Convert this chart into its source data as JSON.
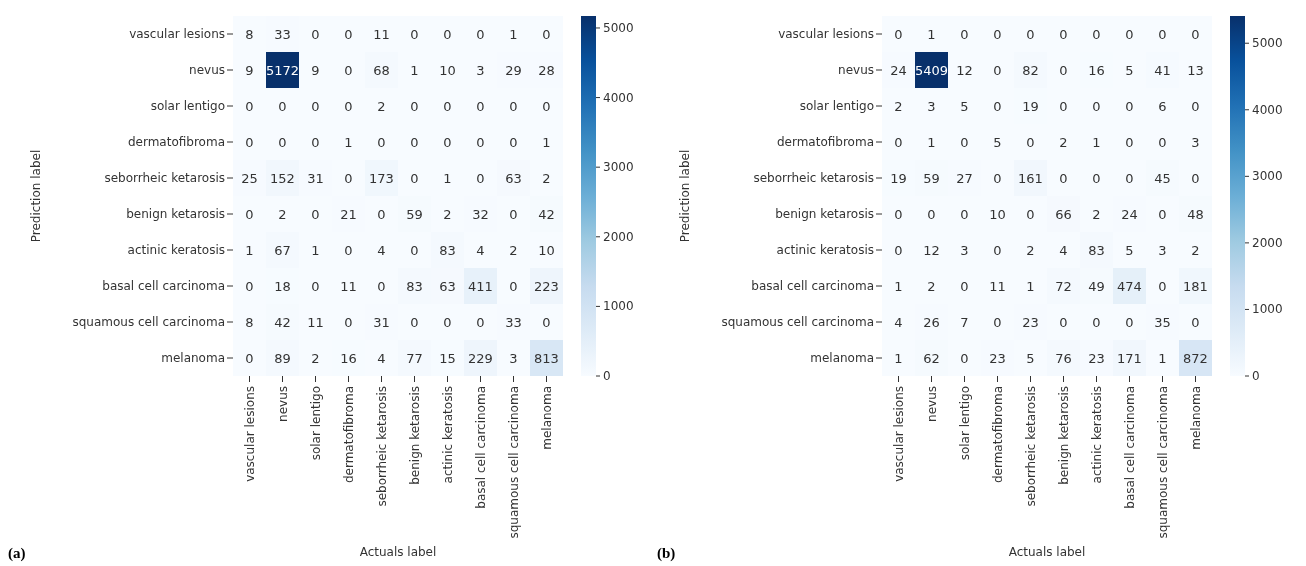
{
  "chart_data": [
    {
      "type": "heatmap",
      "xlabel": "Actuals label",
      "ylabel": "Prediction label",
      "annotations": [
        "(a)"
      ],
      "data_labels": true,
      "categories": [
        "vascular lesions",
        "nevus",
        "solar lentigo",
        "dermatofibroma",
        "seborrheic ketarosis",
        "benign ketarosis",
        "actinic keratosis",
        "basal cell carcinoma",
        "squamous cell carcinoma",
        "melanoma"
      ],
      "y_categories": [
        "vascular lesions",
        "nevus",
        "solar lentigo",
        "dermatofibroma",
        "seborrheic ketarosis",
        "benign ketarosis",
        "actinic keratosis",
        "basal cell carcinoma",
        "squamous cell carcinoma",
        "melanoma"
      ],
      "cells": [
        [
          8,
          33,
          0,
          0,
          11,
          0,
          0,
          0,
          1,
          0
        ],
        [
          9,
          5172,
          9,
          0,
          68,
          1,
          10,
          3,
          29,
          28
        ],
        [
          0,
          0,
          0,
          0,
          2,
          0,
          0,
          0,
          0,
          0
        ],
        [
          0,
          0,
          0,
          1,
          0,
          0,
          0,
          0,
          0,
          1
        ],
        [
          25,
          152,
          31,
          0,
          173,
          0,
          1,
          0,
          63,
          2
        ],
        [
          0,
          2,
          0,
          21,
          0,
          59,
          2,
          32,
          0,
          42
        ],
        [
          1,
          67,
          1,
          0,
          4,
          0,
          83,
          4,
          2,
          10
        ],
        [
          0,
          18,
          0,
          11,
          0,
          83,
          63,
          411,
          0,
          223
        ],
        [
          8,
          42,
          11,
          0,
          31,
          0,
          0,
          0,
          33,
          0
        ],
        [
          0,
          89,
          2,
          16,
          4,
          77,
          15,
          229,
          3,
          813
        ]
      ],
      "clim": [
        0,
        5172
      ],
      "cticks": [
        0,
        1000,
        2000,
        3000,
        4000,
        5000
      ]
    },
    {
      "type": "heatmap",
      "xlabel": "Actuals label",
      "ylabel": "Prediction label",
      "annotations": [
        "(b)"
      ],
      "data_labels": true,
      "categories": [
        "vascular lesions",
        "nevus",
        "solar lentigo",
        "dermatofibroma",
        "seborrheic ketarosis",
        "benign ketarosis",
        "actinic keratosis",
        "basal cell carcinoma",
        "squamous cell carcinoma",
        "melanoma"
      ],
      "y_categories": [
        "vascular lesions",
        "nevus",
        "solar lentigo",
        "dermatofibroma",
        "seborrheic ketarosis",
        "benign ketarosis",
        "actinic keratosis",
        "basal cell carcinoma",
        "squamous cell carcinoma",
        "melanoma"
      ],
      "cells": [
        [
          0,
          1,
          0,
          0,
          0,
          0,
          0,
          0,
          0,
          0
        ],
        [
          24,
          5409,
          12,
          0,
          82,
          0,
          16,
          5,
          41,
          13
        ],
        [
          2,
          3,
          5,
          0,
          19,
          0,
          0,
          0,
          6,
          0
        ],
        [
          0,
          1,
          0,
          5,
          0,
          2,
          1,
          0,
          0,
          3
        ],
        [
          19,
          59,
          27,
          0,
          161,
          0,
          0,
          0,
          45,
          0
        ],
        [
          0,
          0,
          0,
          10,
          0,
          66,
          2,
          24,
          0,
          48
        ],
        [
          0,
          12,
          3,
          0,
          2,
          4,
          83,
          5,
          3,
          2
        ],
        [
          1,
          2,
          0,
          11,
          1,
          72,
          49,
          474,
          0,
          181
        ],
        [
          4,
          26,
          7,
          0,
          23,
          0,
          0,
          0,
          35,
          0
        ],
        [
          1,
          62,
          0,
          23,
          5,
          76,
          23,
          171,
          1,
          872
        ]
      ],
      "clim": [
        0,
        5409
      ],
      "cticks": [
        0,
        1000,
        2000,
        3000,
        4000,
        5000
      ]
    }
  ]
}
